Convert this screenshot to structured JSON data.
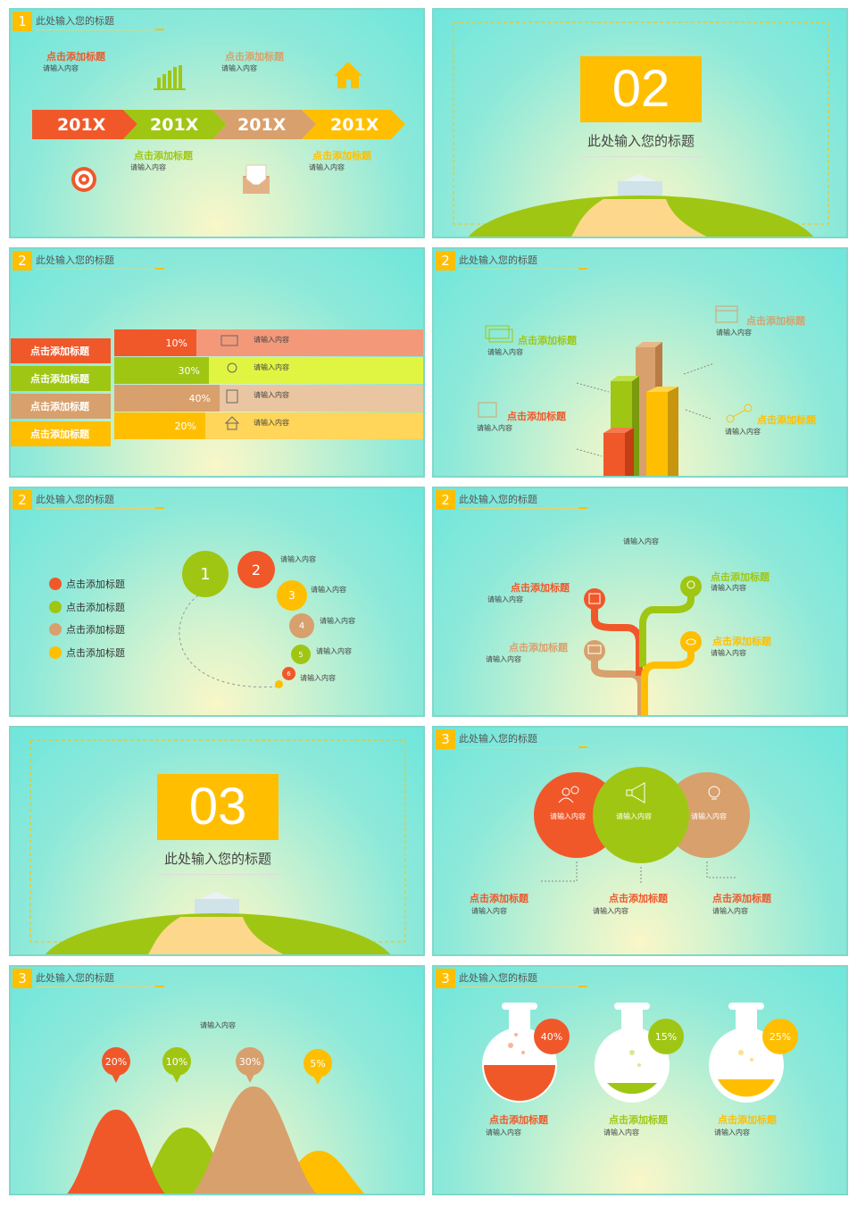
{
  "colors": {
    "red": "#f0582a",
    "green": "#a0c614",
    "tan": "#d8a06c",
    "yellow": "#ffbf00",
    "lime": "#e0f542",
    "salmon": "#f3997a"
  },
  "common": {
    "title": "此处输入您的标题",
    "add_title": "点击添加标题",
    "input": "请输入内容"
  },
  "s1": {
    "num": "1",
    "years": [
      "201X",
      "201X",
      "201X",
      "201X"
    ]
  },
  "s2": {
    "big": "02",
    "sub": "此处输入您的标题"
  },
  "s3": {
    "num": "2",
    "pcts": [
      "10%",
      "30%",
      "40%",
      "20%"
    ]
  },
  "s4": {
    "num": "2"
  },
  "s5": {
    "num": "2",
    "circles": [
      "1",
      "2",
      "3",
      "4",
      "5",
      "6"
    ]
  },
  "s6": {
    "num": "2"
  },
  "s7": {
    "big": "03",
    "sub": "此处输入您的标题"
  },
  "s8": {
    "num": "3"
  },
  "s9": {
    "num": "3",
    "pcts": [
      "20%",
      "10%",
      "30%",
      "5%"
    ]
  },
  "s10": {
    "num": "3",
    "pcts": [
      "40%",
      "15%",
      "25%"
    ]
  }
}
